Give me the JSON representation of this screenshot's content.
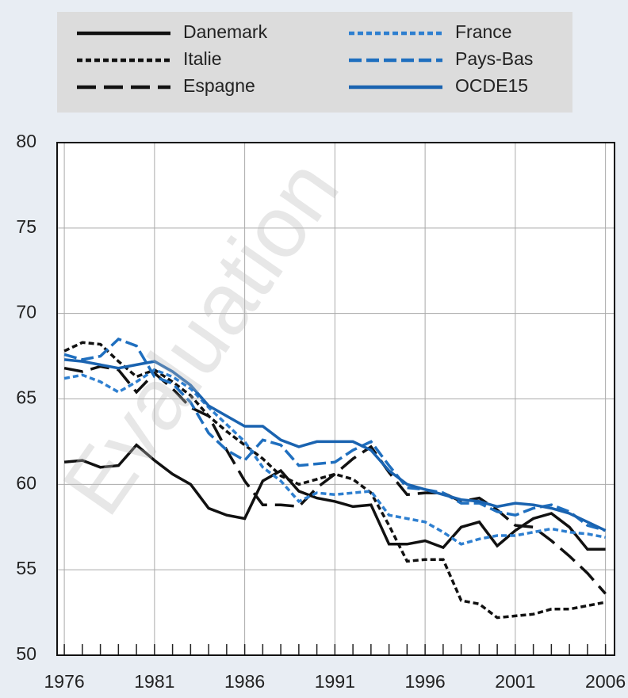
{
  "chart_data": {
    "type": "line",
    "watermark": "Evaluation",
    "x": [
      1976,
      1977,
      1978,
      1979,
      1980,
      1981,
      1982,
      1983,
      1984,
      1985,
      1986,
      1987,
      1988,
      1989,
      1990,
      1991,
      1992,
      1993,
      1994,
      1995,
      1996,
      1997,
      1998,
      1999,
      2000,
      2001,
      2002,
      2003,
      2004,
      2005,
      2006
    ],
    "xlim": [
      1975.6,
      2006.5
    ],
    "xticks": [
      1976,
      1981,
      1986,
      1991,
      1996,
      2001,
      2006
    ],
    "ylim": [
      50,
      80
    ],
    "yticks": [
      50,
      55,
      60,
      65,
      70,
      75,
      80
    ],
    "grid": true,
    "legend": "top",
    "series": [
      {
        "name": "Danemark",
        "color": "#111111",
        "style": "solid",
        "values": [
          61.3,
          61.4,
          61.0,
          61.1,
          62.3,
          61.4,
          60.6,
          60.0,
          58.6,
          58.2,
          58.0,
          60.2,
          60.8,
          59.6,
          59.2,
          59.0,
          58.7,
          58.8,
          56.5,
          56.5,
          56.7,
          56.3,
          57.5,
          57.8,
          56.4,
          57.3,
          58.0,
          58.3,
          57.5,
          56.2,
          56.2
        ]
      },
      {
        "name": "Italie",
        "color": "#111111",
        "style": "dotted",
        "values": [
          67.8,
          68.3,
          68.2,
          67.2,
          66.3,
          66.7,
          66.0,
          65.2,
          64.0,
          63.1,
          62.3,
          61.5,
          60.5,
          60.0,
          60.3,
          60.6,
          60.3,
          59.5,
          57.6,
          55.5,
          55.6,
          55.6,
          53.2,
          53.0,
          52.2,
          52.3,
          52.4,
          52.7,
          52.7,
          52.9,
          53.1
        ]
      },
      {
        "name": "Espagne",
        "color": "#111111",
        "style": "longdash",
        "values": [
          66.8,
          66.6,
          66.9,
          66.7,
          65.4,
          66.5,
          65.6,
          64.5,
          64.0,
          62.0,
          60.2,
          58.8,
          58.8,
          58.7,
          59.8,
          60.6,
          61.5,
          62.2,
          60.7,
          59.4,
          59.5,
          59.5,
          59.0,
          59.2,
          58.5,
          57.6,
          57.5,
          56.7,
          55.8,
          54.8,
          53.6
        ]
      },
      {
        "name": "France",
        "color": "#2e7fd0",
        "style": "dotted",
        "values": [
          66.2,
          66.4,
          66.0,
          65.4,
          66.0,
          66.7,
          66.3,
          65.6,
          64.5,
          63.5,
          62.5,
          61.0,
          60.2,
          59.0,
          59.5,
          59.4,
          59.5,
          59.6,
          58.2,
          58.0,
          57.8,
          57.2,
          56.5,
          56.8,
          57.0,
          57.0,
          57.2,
          57.4,
          57.2,
          57.1,
          56.9
        ]
      },
      {
        "name": "Pays-Bas",
        "color": "#1f6fbf",
        "style": "dashed",
        "values": [
          67.6,
          67.3,
          67.5,
          68.5,
          68.1,
          66.3,
          65.9,
          64.8,
          63.0,
          62.0,
          61.4,
          62.6,
          62.3,
          61.1,
          61.2,
          61.3,
          62.0,
          62.5,
          61.1,
          59.8,
          59.7,
          59.5,
          58.9,
          58.9,
          58.4,
          58.2,
          58.6,
          58.8,
          58.4,
          57.6,
          57.3
        ]
      },
      {
        "name": "OCDE15",
        "color": "#1a63b0",
        "style": "solid",
        "values": [
          67.3,
          67.2,
          67.0,
          66.8,
          67.0,
          67.2,
          66.6,
          65.8,
          64.6,
          64.0,
          63.4,
          63.4,
          62.6,
          62.2,
          62.5,
          62.5,
          62.5,
          62.0,
          60.8,
          60.0,
          59.7,
          59.4,
          59.1,
          59.0,
          58.7,
          58.9,
          58.8,
          58.6,
          58.3,
          57.8,
          57.3
        ]
      }
    ]
  }
}
